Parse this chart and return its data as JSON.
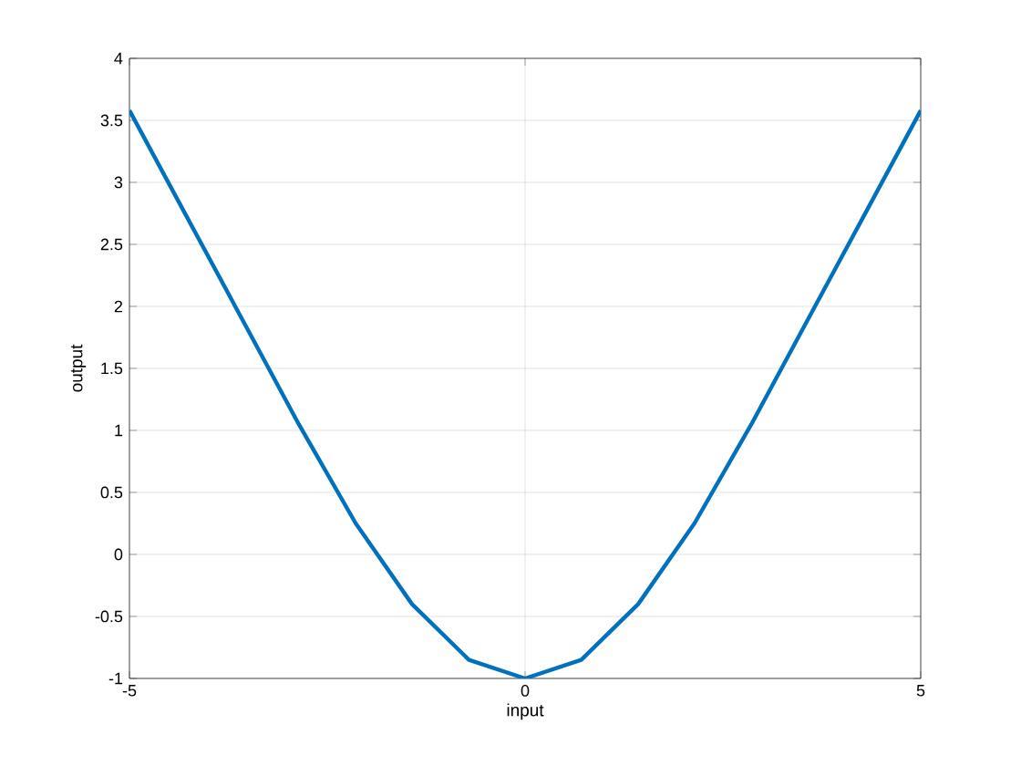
{
  "chart_data": {
    "type": "line",
    "xlabel": "input",
    "ylabel": "output",
    "x": [
      -5,
      -4.29,
      -3.57,
      -2.86,
      -2.14,
      -1.43,
      -0.71,
      0,
      0.71,
      1.43,
      2.14,
      2.86,
      3.57,
      4.29,
      5
    ],
    "series": [
      {
        "color": "#0072bd",
        "values": [
          3.58,
          2.74,
          1.89,
          1.05,
          0.25,
          -0.4,
          -0.85,
          -1,
          -0.85,
          -0.4,
          0.25,
          1.05,
          1.89,
          2.74,
          3.58
        ]
      }
    ],
    "xlim": [
      -5,
      5
    ],
    "ylim": [
      -1,
      4
    ],
    "xticks": [
      -5,
      0,
      5
    ],
    "yticks": [
      -1,
      -0.5,
      0,
      0.5,
      1,
      1.5,
      2,
      2.5,
      3,
      3.5,
      4
    ],
    "grid": true,
    "marker": "none",
    "line_style": "solid"
  }
}
